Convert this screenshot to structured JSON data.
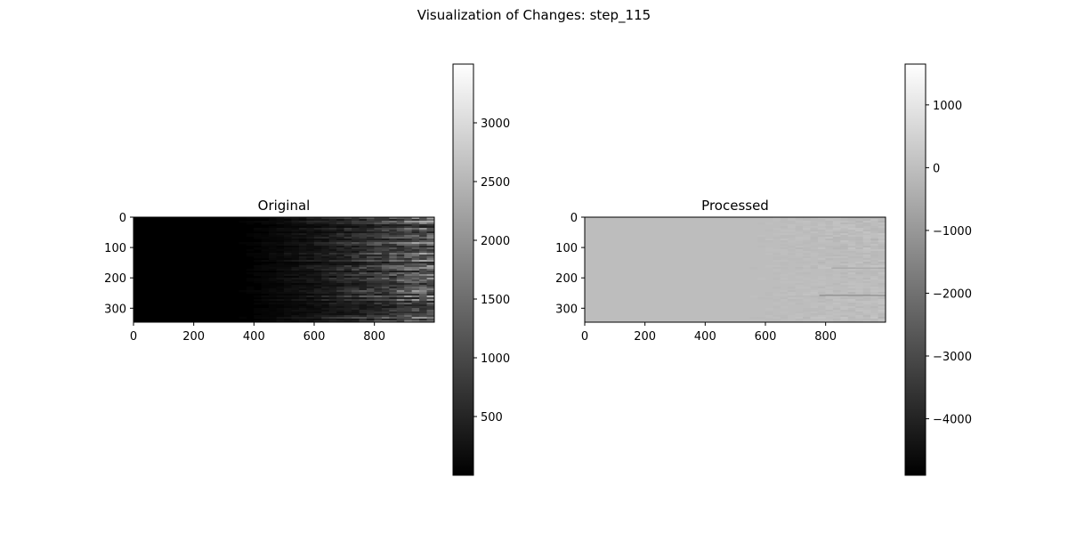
{
  "page": {
    "title": "Visualization of Changes: step_115"
  },
  "chart_data": [
    {
      "type": "heatmap",
      "title": "Original",
      "xlabel": "",
      "ylabel": "",
      "x_ticks": [
        0,
        200,
        400,
        600,
        800
      ],
      "y_ticks": [
        0,
        100,
        200,
        300
      ],
      "xlim": [
        0,
        999
      ],
      "ylim": [
        346,
        0
      ],
      "colormap": "gray",
      "colorbar": {
        "range": [
          0,
          3500
        ],
        "ticks": [
          500,
          1000,
          1500,
          2000,
          2500,
          3000
        ],
        "tick_labels": [
          "500",
          "1000",
          "1500",
          "2000",
          "2500",
          "3000"
        ]
      },
      "description_stats": {
        "background_value": 0,
        "max_visible_value": 2300
      }
    },
    {
      "type": "heatmap",
      "title": "Processed",
      "xlabel": "",
      "ylabel": "",
      "x_ticks": [
        0,
        200,
        400,
        600,
        800
      ],
      "y_ticks": [
        0,
        100,
        200,
        300
      ],
      "xlim": [
        0,
        999
      ],
      "ylim": [
        346,
        0
      ],
      "colormap": "gray",
      "colorbar": {
        "range": [
          -4900,
          1650
        ],
        "ticks": [
          -4000,
          -3000,
          -2000,
          -1000,
          0,
          1000
        ],
        "tick_labels": [
          "−4000",
          "−3000",
          "−2000",
          "−1000",
          "0",
          "1000"
        ]
      },
      "description_stats": {
        "background_value": 0
      }
    }
  ]
}
